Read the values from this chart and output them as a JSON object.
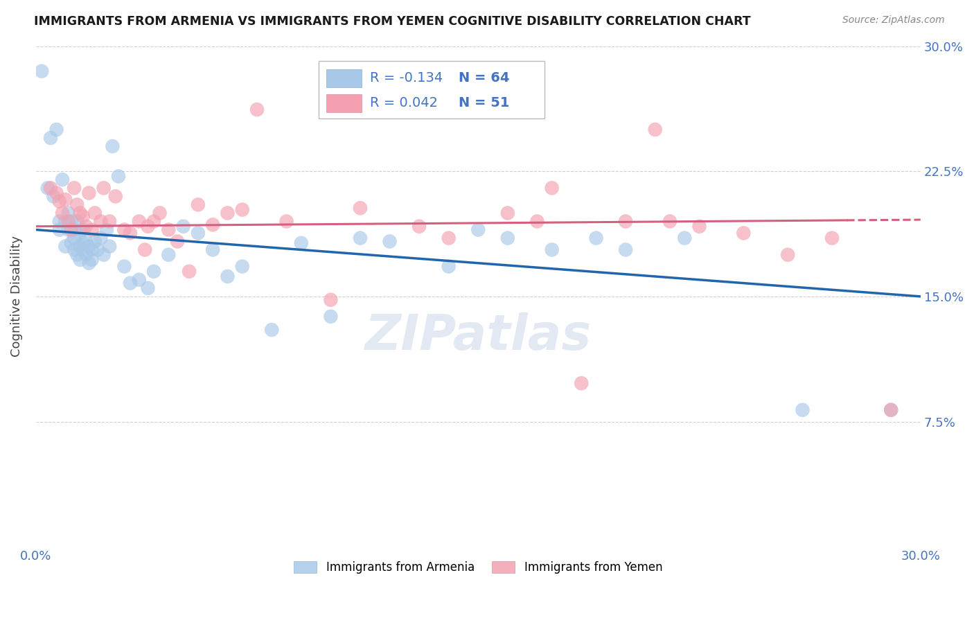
{
  "title": "IMMIGRANTS FROM ARMENIA VS IMMIGRANTS FROM YEMEN COGNITIVE DISABILITY CORRELATION CHART",
  "source": "Source: ZipAtlas.com",
  "ylabel": "Cognitive Disability",
  "xlim": [
    0.0,
    0.3
  ],
  "ylim": [
    0.0,
    0.3
  ],
  "x_ticks": [
    0.0,
    0.05,
    0.1,
    0.15,
    0.2,
    0.25,
    0.3
  ],
  "y_ticks": [
    0.0,
    0.075,
    0.15,
    0.225,
    0.3
  ],
  "legend_armenia": "Immigrants from Armenia",
  "legend_yemen": "Immigrants from Yemen",
  "R_armenia": "-0.134",
  "N_armenia": "64",
  "R_yemen": "0.042",
  "N_yemen": "51",
  "color_armenia": "#a8c8e8",
  "color_yemen": "#f4a0b0",
  "trendline_armenia_color": "#2166ac",
  "trendline_yemen_color": "#d46080",
  "background_color": "#ffffff",
  "grid_color": "#d0d0d0",
  "armenia_x": [
    0.002,
    0.004,
    0.005,
    0.006,
    0.007,
    0.008,
    0.008,
    0.009,
    0.01,
    0.01,
    0.011,
    0.011,
    0.012,
    0.012,
    0.013,
    0.013,
    0.013,
    0.014,
    0.014,
    0.015,
    0.015,
    0.015,
    0.016,
    0.016,
    0.016,
    0.017,
    0.017,
    0.018,
    0.018,
    0.019,
    0.019,
    0.02,
    0.021,
    0.022,
    0.023,
    0.024,
    0.025,
    0.026,
    0.028,
    0.03,
    0.032,
    0.035,
    0.038,
    0.04,
    0.045,
    0.05,
    0.055,
    0.06,
    0.065,
    0.07,
    0.08,
    0.09,
    0.1,
    0.11,
    0.12,
    0.14,
    0.15,
    0.16,
    0.175,
    0.19,
    0.2,
    0.22,
    0.26,
    0.29
  ],
  "armenia_y": [
    0.285,
    0.215,
    0.245,
    0.21,
    0.25,
    0.19,
    0.195,
    0.22,
    0.195,
    0.18,
    0.19,
    0.2,
    0.195,
    0.182,
    0.19,
    0.185,
    0.178,
    0.175,
    0.195,
    0.172,
    0.18,
    0.188,
    0.178,
    0.19,
    0.182,
    0.175,
    0.183,
    0.17,
    0.18,
    0.172,
    0.178,
    0.183,
    0.178,
    0.185,
    0.175,
    0.19,
    0.18,
    0.24,
    0.222,
    0.168,
    0.158,
    0.16,
    0.155,
    0.165,
    0.175,
    0.192,
    0.188,
    0.178,
    0.162,
    0.168,
    0.13,
    0.182,
    0.138,
    0.185,
    0.183,
    0.168,
    0.19,
    0.185,
    0.178,
    0.185,
    0.178,
    0.185,
    0.082,
    0.082
  ],
  "yemen_x": [
    0.005,
    0.007,
    0.008,
    0.009,
    0.01,
    0.011,
    0.012,
    0.013,
    0.014,
    0.015,
    0.016,
    0.017,
    0.018,
    0.019,
    0.02,
    0.022,
    0.023,
    0.025,
    0.027,
    0.03,
    0.032,
    0.035,
    0.037,
    0.038,
    0.04,
    0.042,
    0.045,
    0.048,
    0.052,
    0.055,
    0.06,
    0.065,
    0.07,
    0.075,
    0.085,
    0.1,
    0.11,
    0.13,
    0.14,
    0.16,
    0.17,
    0.175,
    0.185,
    0.2,
    0.21,
    0.215,
    0.225,
    0.24,
    0.255,
    0.27,
    0.29
  ],
  "yemen_y": [
    0.215,
    0.212,
    0.207,
    0.2,
    0.208,
    0.195,
    0.19,
    0.215,
    0.205,
    0.2,
    0.198,
    0.192,
    0.212,
    0.19,
    0.2,
    0.195,
    0.215,
    0.195,
    0.21,
    0.19,
    0.188,
    0.195,
    0.178,
    0.192,
    0.195,
    0.2,
    0.19,
    0.183,
    0.165,
    0.205,
    0.193,
    0.2,
    0.202,
    0.262,
    0.195,
    0.148,
    0.203,
    0.192,
    0.185,
    0.2,
    0.195,
    0.215,
    0.098,
    0.195,
    0.25,
    0.195,
    0.192,
    0.188,
    0.175,
    0.185,
    0.082
  ],
  "trendline_armenia_start_y": 0.19,
  "trendline_armenia_end_y": 0.15,
  "trendline_yemen_start_y": 0.192,
  "trendline_yemen_end_y": 0.196,
  "trendline_yemen_solid_end_x": 0.275
}
